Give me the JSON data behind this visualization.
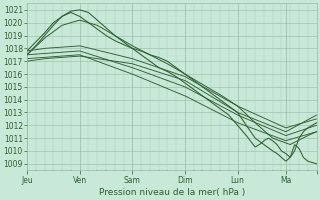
{
  "xlabel": "Pression niveau de la mer( hPa )",
  "bg_color": "#c8e8d8",
  "line_color": "#2d6030",
  "grid_major_color": "#99bbaa",
  "grid_minor_color": "#aaccbb",
  "ylim": [
    1008.5,
    1021.5
  ],
  "yticks": [
    1009,
    1010,
    1011,
    1012,
    1013,
    1014,
    1015,
    1016,
    1017,
    1018,
    1019,
    1020,
    1021
  ],
  "xlim": [
    0,
    132
  ],
  "day_tick_pos": [
    0,
    24,
    48,
    72,
    96,
    118,
    132
  ],
  "day_labels": [
    "Jeu",
    "Ven",
    "Sam",
    "Dim",
    "Lun",
    "Ma"
  ],
  "xlabel_fontsize": 6.5,
  "tick_fontsize": 5.5
}
